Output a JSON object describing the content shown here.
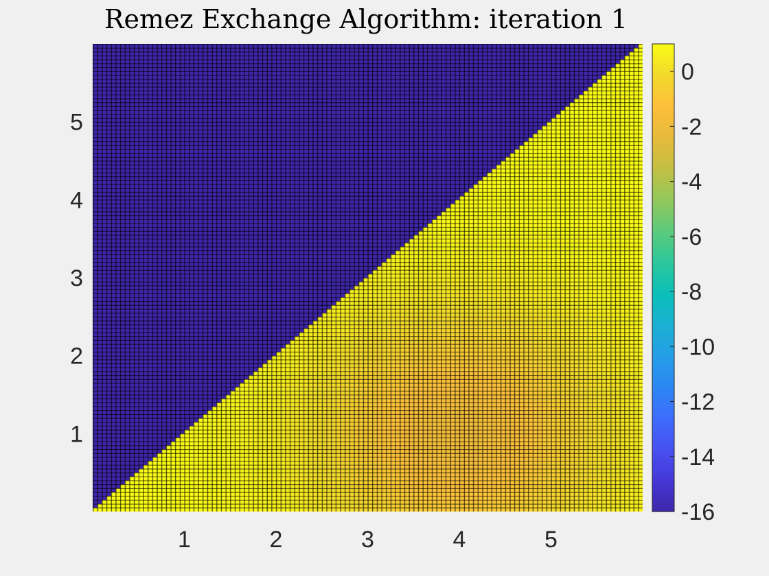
{
  "chart_data": {
    "type": "heatmap",
    "title": "Remez Exchange Algorithm: iteration 1",
    "xlabel": "",
    "ylabel": "",
    "xlim": [
      0,
      6
    ],
    "ylim": [
      0,
      6
    ],
    "grid": false,
    "grid_size": 120,
    "x_ticks": [
      1,
      2,
      3,
      4,
      5
    ],
    "y_ticks": [
      1,
      2,
      3,
      4,
      5
    ],
    "regions": [
      {
        "name": "upper-left triangle (y > x)",
        "value": -16
      },
      {
        "name": "lower-right triangle (y <= x)",
        "value": 1,
        "dip": {
          "center": [
            4.0,
            1.0
          ],
          "min_value": -1.8,
          "spread": 1.1
        }
      }
    ],
    "colorbar": {
      "range": [
        -16,
        1
      ],
      "ticks": [
        0,
        -2,
        -4,
        -6,
        -8,
        -10,
        -12,
        -14,
        -16
      ],
      "colormap": "parula",
      "colormap_stops": [
        "#3e26a8",
        "#4538d7",
        "#4751f0",
        "#3e6cfc",
        "#2d87f3",
        "#259ee7",
        "#1bb0d2",
        "#0bbfb8",
        "#2cc79b",
        "#5ccb7b",
        "#93c85b",
        "#c3bf43",
        "#e7ba3b",
        "#fdc03a",
        "#f3d92c",
        "#f9fb15"
      ]
    }
  }
}
